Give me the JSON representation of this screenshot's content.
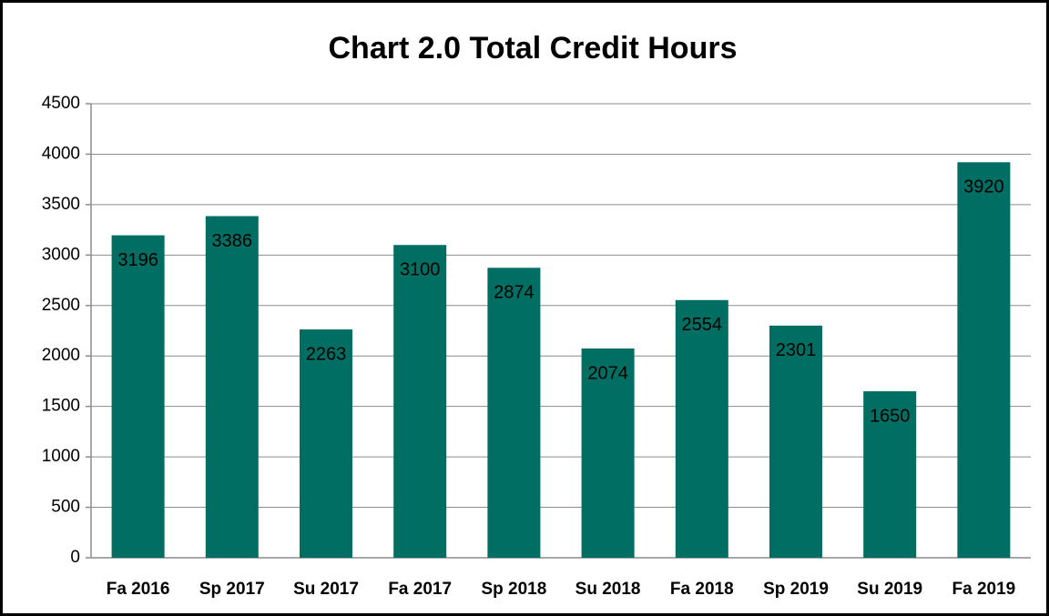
{
  "chart_data": {
    "type": "bar",
    "title": "Chart 2.0 Total Credit Hours",
    "categories": [
      "Fa 2016",
      "Sp 2017",
      "Su 2017",
      "Fa 2017",
      "Sp 2018",
      "Su 2018",
      "Fa 2018",
      "Sp 2019",
      "Su 2019",
      "Fa 2019"
    ],
    "values": [
      3196,
      3386,
      2263,
      3100,
      2874,
      2074,
      2554,
      2301,
      1650,
      3920
    ],
    "color": "#006e62",
    "ylim": [
      0,
      4500
    ],
    "yticks": [
      0,
      500,
      1000,
      1500,
      2000,
      2500,
      3000,
      3500,
      4000,
      4500
    ],
    "grid": true
  }
}
